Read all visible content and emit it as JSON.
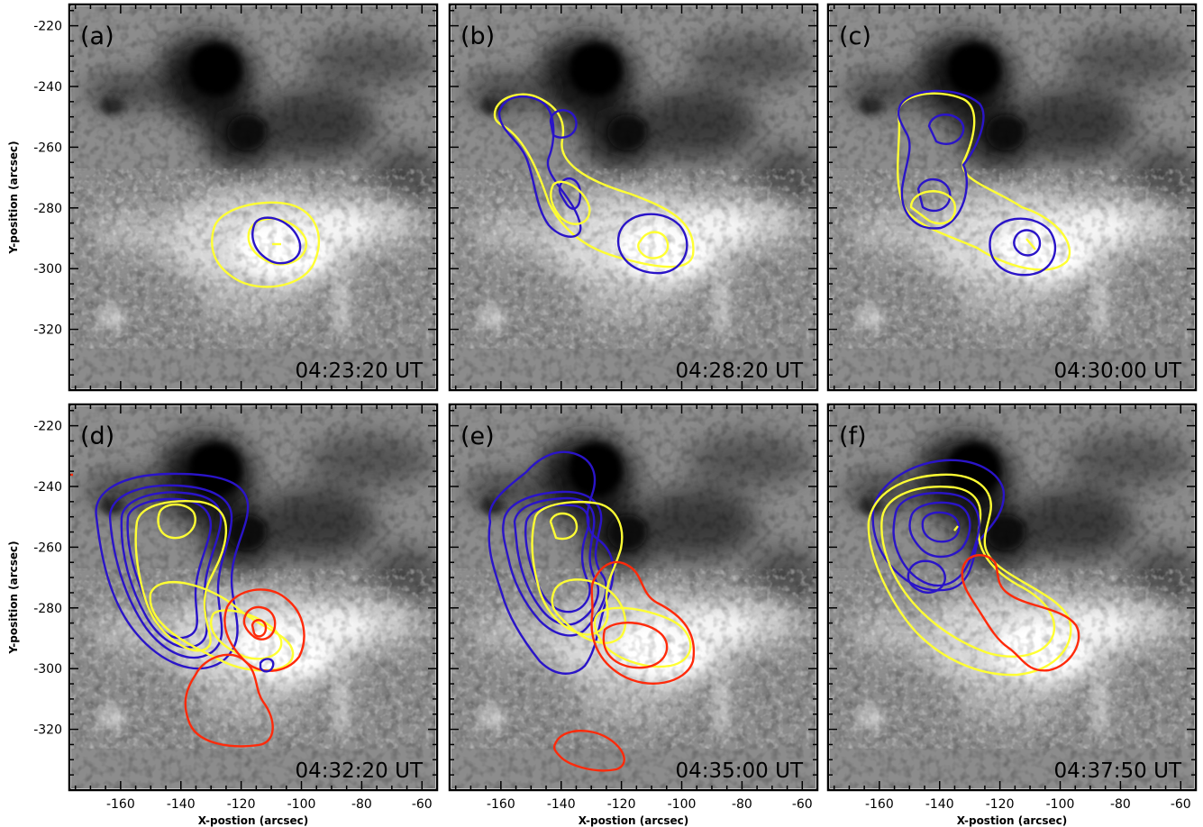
{
  "figure": {
    "x_axis_title": "X-postion (arcsec)",
    "y_axis_title": "Y-position (arcsec)",
    "x_ticks": [
      "-160",
      "-140",
      "-120",
      "-100",
      "-80",
      "-60"
    ],
    "y_ticks": [
      "-220",
      "-240",
      "-260",
      "-280",
      "-300",
      "-320"
    ],
    "x_range": [
      -177,
      -55
    ],
    "y_range": [
      -340,
      -213
    ],
    "contour_colors": {
      "blue": "#2a14c8",
      "yellow": "#ffff33",
      "red": "#ff2a0a"
    }
  },
  "panels": [
    {
      "id": "a",
      "label": "(a)",
      "time": "04:23:20 UT"
    },
    {
      "id": "b",
      "label": "(b)",
      "time": "04:28:20 UT"
    },
    {
      "id": "c",
      "label": "(c)",
      "time": "04:30:00 UT"
    },
    {
      "id": "d",
      "label": "(d)",
      "time": "04:32:20 UT"
    },
    {
      "id": "e",
      "label": "(e)",
      "time": "04:35:00 UT"
    },
    {
      "id": "f",
      "label": "(f)",
      "time": "04:37:50 UT"
    }
  ]
}
